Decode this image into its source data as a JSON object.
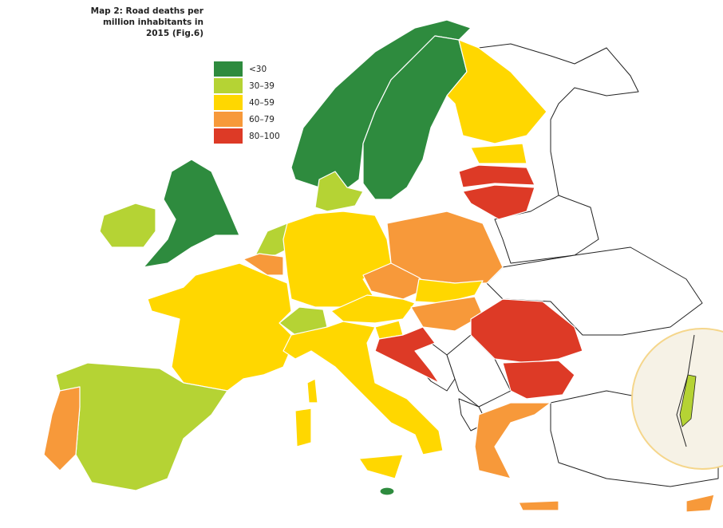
{
  "map": {
    "title_lines": [
      "Map 2: Road deaths per",
      "million inhabitants in",
      "2015 (Fig.6)"
    ],
    "legend": [
      {
        "label": "<30",
        "color": "#2e8b3e"
      },
      {
        "label": "30–39",
        "color": "#b5d334"
      },
      {
        "label": "40–59",
        "color": "#ffd700"
      },
      {
        "label": "60–79",
        "color": "#f7993a"
      },
      {
        "label": "80–100",
        "color": "#dd3a26"
      }
    ]
  }
}
